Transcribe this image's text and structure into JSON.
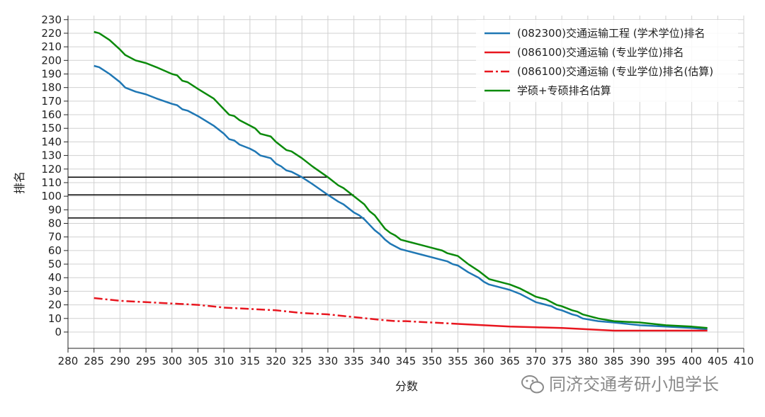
{
  "chart_data": {
    "type": "line",
    "title": "",
    "xlabel": "分数",
    "ylabel": "排名",
    "xlim": [
      280,
      410
    ],
    "ylim": [
      -12,
      233
    ],
    "x_ticks": [
      280,
      285,
      290,
      295,
      300,
      305,
      310,
      315,
      320,
      325,
      330,
      335,
      340,
      345,
      350,
      355,
      360,
      365,
      370,
      375,
      380,
      385,
      390,
      395,
      400,
      405,
      410
    ],
    "y_ticks": [
      0,
      10,
      20,
      30,
      40,
      50,
      60,
      70,
      80,
      90,
      100,
      110,
      120,
      130,
      140,
      150,
      160,
      170,
      180,
      190,
      200,
      210,
      220,
      230
    ],
    "grid": true,
    "legend_position": "top-right",
    "series": [
      {
        "name": "(082300)交通运输工程 (学术学位)排名",
        "color": "#1f77b4",
        "style": "solid",
        "points": [
          [
            285,
            196
          ],
          [
            286,
            195
          ],
          [
            288,
            190
          ],
          [
            290,
            184
          ],
          [
            291,
            180
          ],
          [
            293,
            177
          ],
          [
            295,
            175
          ],
          [
            297,
            172
          ],
          [
            300,
            168
          ],
          [
            301,
            167
          ],
          [
            302,
            164
          ],
          [
            303,
            163
          ],
          [
            305,
            159
          ],
          [
            308,
            152
          ],
          [
            310,
            146
          ],
          [
            311,
            142
          ],
          [
            312,
            141
          ],
          [
            313,
            138
          ],
          [
            315,
            135
          ],
          [
            316,
            133
          ],
          [
            317,
            130
          ],
          [
            319,
            128
          ],
          [
            320,
            124
          ],
          [
            321,
            122
          ],
          [
            322,
            119
          ],
          [
            323,
            118
          ],
          [
            325,
            114
          ],
          [
            327,
            109
          ],
          [
            330,
            101
          ],
          [
            332,
            96
          ],
          [
            333,
            94
          ],
          [
            335,
            88
          ],
          [
            336,
            86
          ],
          [
            337,
            83
          ],
          [
            338,
            79
          ],
          [
            339,
            75
          ],
          [
            340,
            72
          ],
          [
            341,
            68
          ],
          [
            342,
            65
          ],
          [
            343,
            63
          ],
          [
            344,
            61
          ],
          [
            346,
            59
          ],
          [
            348,
            57
          ],
          [
            350,
            55
          ],
          [
            352,
            53
          ],
          [
            353,
            52
          ],
          [
            354,
            50
          ],
          [
            355,
            49
          ],
          [
            357,
            44
          ],
          [
            359,
            40
          ],
          [
            360,
            37
          ],
          [
            361,
            35
          ],
          [
            364,
            32
          ],
          [
            365,
            31
          ],
          [
            367,
            28
          ],
          [
            369,
            24
          ],
          [
            370,
            22
          ],
          [
            372,
            20
          ],
          [
            373,
            19
          ],
          [
            374,
            17
          ],
          [
            375,
            16
          ],
          [
            377,
            13
          ],
          [
            378,
            12
          ],
          [
            379,
            10
          ],
          [
            382,
            8
          ],
          [
            385,
            7
          ],
          [
            390,
            5
          ],
          [
            395,
            4
          ],
          [
            400,
            3
          ],
          [
            403,
            2
          ]
        ]
      },
      {
        "name": "(086100)交通运输 (专业学位)排名",
        "color": "#e8161f",
        "style": "solid",
        "points": [
          [
            355,
            6
          ],
          [
            360,
            5
          ],
          [
            365,
            4
          ],
          [
            370,
            3.5
          ],
          [
            375,
            3
          ],
          [
            380,
            2
          ],
          [
            385,
            1
          ],
          [
            390,
            1
          ],
          [
            395,
            1
          ],
          [
            400,
            1
          ],
          [
            403,
            1
          ]
        ]
      },
      {
        "name": "(086100)交通运输 (专业学位)排名(估算)",
        "color": "#e8161f",
        "style": "dashdot",
        "points": [
          [
            285,
            25
          ],
          [
            290,
            23
          ],
          [
            295,
            22
          ],
          [
            300,
            21
          ],
          [
            305,
            20
          ],
          [
            310,
            18
          ],
          [
            315,
            17
          ],
          [
            320,
            16
          ],
          [
            325,
            14
          ],
          [
            330,
            13
          ],
          [
            335,
            11
          ],
          [
            340,
            9
          ],
          [
            343,
            8
          ],
          [
            345,
            8
          ],
          [
            350,
            7
          ],
          [
            355,
            6
          ]
        ]
      },
      {
        "name": "学硕+专硕排名估算",
        "color": "#0b8a0b",
        "style": "solid",
        "points": [
          [
            285,
            221
          ],
          [
            286,
            220
          ],
          [
            288,
            215
          ],
          [
            290,
            208
          ],
          [
            291,
            204
          ],
          [
            293,
            200
          ],
          [
            295,
            198
          ],
          [
            297,
            195
          ],
          [
            300,
            190
          ],
          [
            301,
            189
          ],
          [
            302,
            185
          ],
          [
            303,
            184
          ],
          [
            305,
            179
          ],
          [
            308,
            172
          ],
          [
            310,
            164
          ],
          [
            311,
            160
          ],
          [
            312,
            159
          ],
          [
            313,
            156
          ],
          [
            315,
            152
          ],
          [
            316,
            150
          ],
          [
            317,
            146
          ],
          [
            319,
            144
          ],
          [
            320,
            140
          ],
          [
            321,
            137
          ],
          [
            322,
            134
          ],
          [
            323,
            133
          ],
          [
            325,
            128
          ],
          [
            327,
            122
          ],
          [
            330,
            114
          ],
          [
            332,
            108
          ],
          [
            333,
            106
          ],
          [
            335,
            100
          ],
          [
            336,
            97
          ],
          [
            337,
            94
          ],
          [
            338,
            89
          ],
          [
            339,
            86
          ],
          [
            340,
            81
          ],
          [
            341,
            76
          ],
          [
            342,
            73
          ],
          [
            343,
            71
          ],
          [
            344,
            68
          ],
          [
            346,
            66
          ],
          [
            348,
            64
          ],
          [
            350,
            62
          ],
          [
            352,
            60
          ],
          [
            353,
            58
          ],
          [
            354,
            57
          ],
          [
            355,
            56
          ],
          [
            357,
            50
          ],
          [
            359,
            45
          ],
          [
            360,
            42
          ],
          [
            361,
            39
          ],
          [
            364,
            36
          ],
          [
            365,
            35
          ],
          [
            367,
            32
          ],
          [
            369,
            28
          ],
          [
            370,
            26
          ],
          [
            372,
            24
          ],
          [
            373,
            22
          ],
          [
            374,
            20
          ],
          [
            375,
            19
          ],
          [
            377,
            16
          ],
          [
            378,
            15
          ],
          [
            379,
            13
          ],
          [
            382,
            10
          ],
          [
            385,
            8
          ],
          [
            390,
            7
          ],
          [
            395,
            5
          ],
          [
            400,
            4
          ],
          [
            403,
            3
          ]
        ]
      }
    ],
    "reference_lines": [
      {
        "y": 114,
        "x_end": 330,
        "color": "#000000"
      },
      {
        "y": 101,
        "x_end": 335,
        "color": "#000000"
      },
      {
        "y": 84,
        "x_end": 337,
        "color": "#000000"
      }
    ]
  },
  "watermark": {
    "text": "同济交通考研小旭学长",
    "icon": "wechat-icon"
  }
}
